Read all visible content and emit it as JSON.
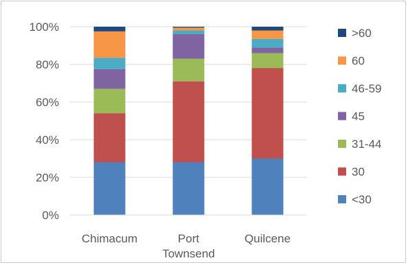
{
  "chart_data": {
    "type": "bar",
    "stacked": true,
    "percent": true,
    "categories": [
      "Chimacum",
      "Port\nTownsend",
      "Quilcene"
    ],
    "yticks": [
      "0%",
      "20%",
      "40%",
      "60%",
      "80%",
      "100%"
    ],
    "ylim": [
      0,
      100
    ],
    "grid": true,
    "legend_position": "right",
    "series": [
      {
        "name": "<30",
        "color": "#4F81BD",
        "values": [
          28,
          28,
          30
        ]
      },
      {
        "name": "30",
        "color": "#C0504D",
        "values": [
          26,
          43,
          48
        ]
      },
      {
        "name": "31-44",
        "color": "#9BBB59",
        "values": [
          13,
          12,
          8
        ]
      },
      {
        "name": "45",
        "color": "#8064A2",
        "values": [
          10.5,
          13,
          3
        ]
      },
      {
        "name": "46-59",
        "color": "#4BACC6",
        "values": [
          6,
          2,
          4.5
        ]
      },
      {
        "name": "60",
        "color": "#F79646",
        "values": [
          14,
          1.5,
          4.5
        ]
      },
      {
        "name": ">60",
        "color": "#1F497D",
        "values": [
          2.5,
          0.5,
          2
        ]
      }
    ]
  }
}
